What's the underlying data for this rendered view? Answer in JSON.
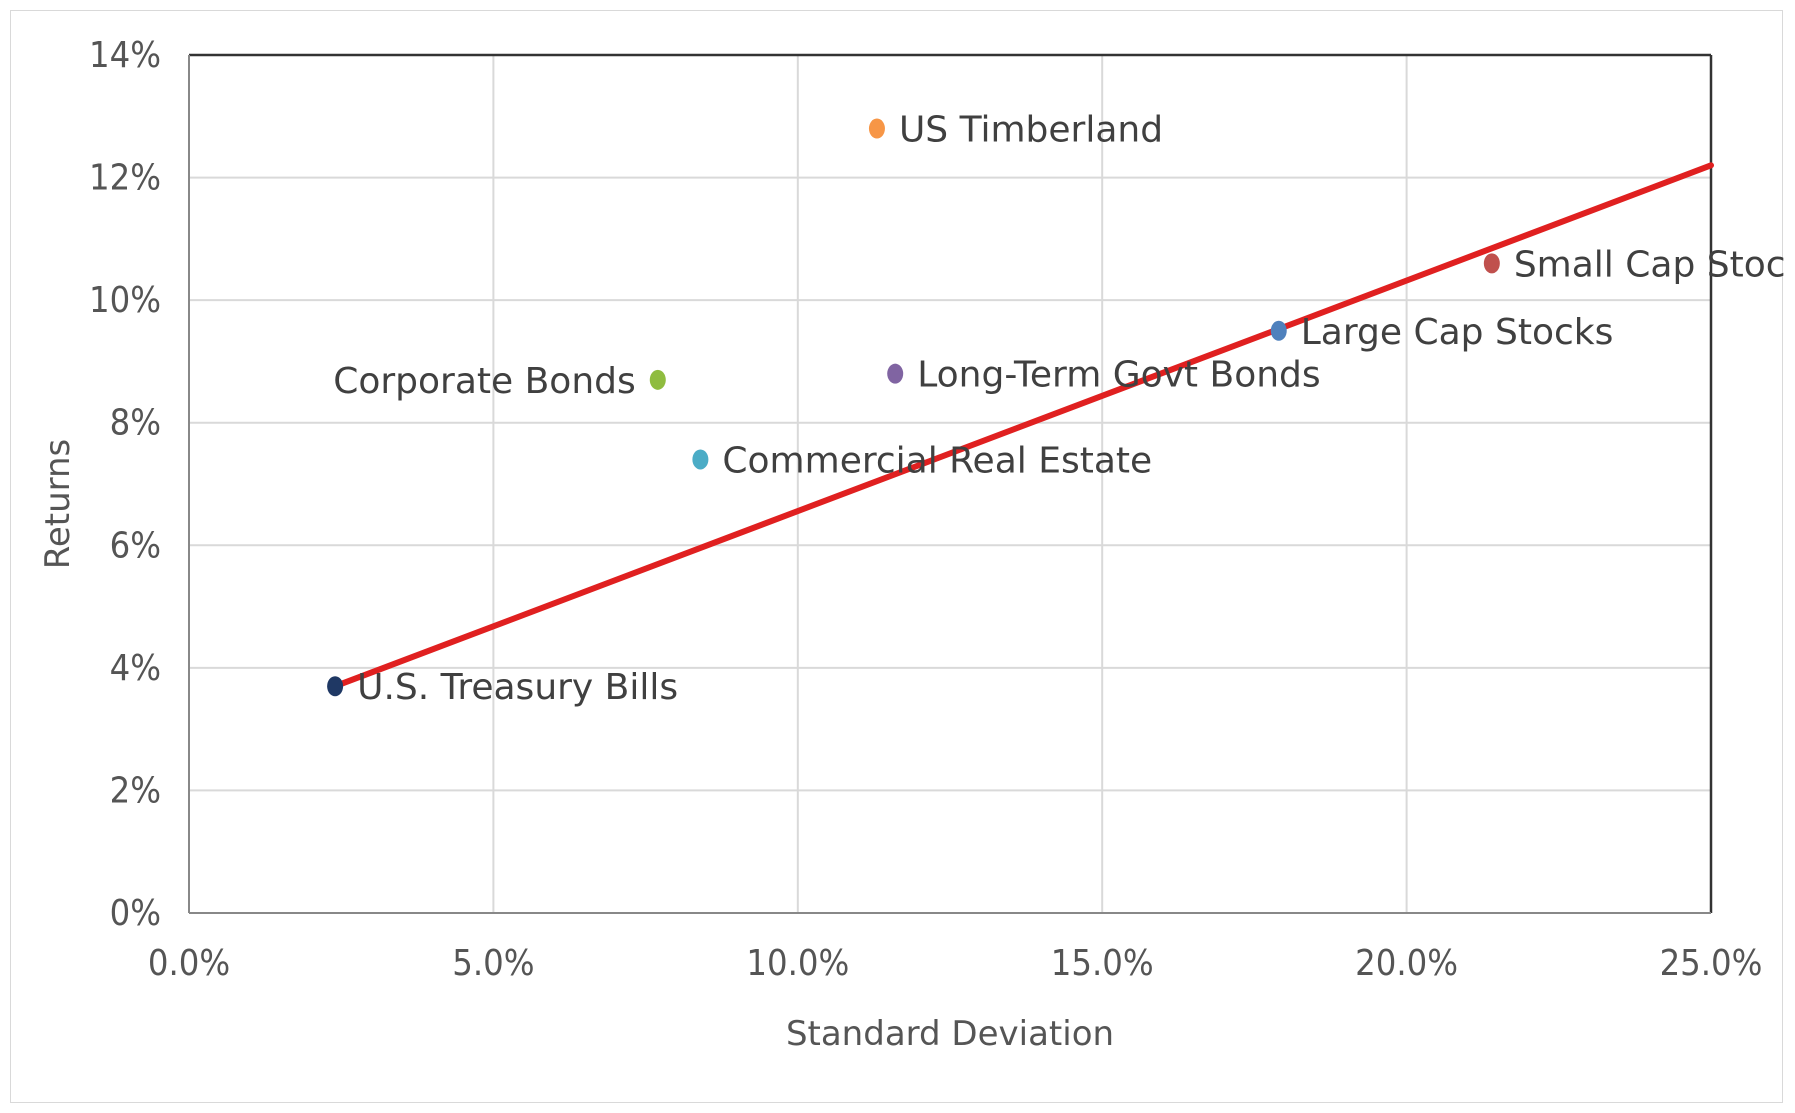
{
  "chart_data": {
    "type": "scatter",
    "title": "",
    "xlabel": "Standard Deviation",
    "ylabel": "Returns",
    "xlim": [
      0.0,
      25.0
    ],
    "ylim": [
      0,
      14
    ],
    "x_ticks": [
      "0.0%",
      "5.0%",
      "10.0%",
      "15.0%",
      "20.0%",
      "25.0%"
    ],
    "y_ticks": [
      "0%",
      "2%",
      "4%",
      "6%",
      "8%",
      "10%",
      "12%",
      "14%"
    ],
    "grid": true,
    "points": [
      {
        "label": "U.S. Treasury Bills",
        "x": 2.4,
        "y": 3.7,
        "color": "#1f3864",
        "label_side": "right"
      },
      {
        "label": "Corporate Bonds",
        "x": 7.7,
        "y": 8.7,
        "color": "#8fbc3f",
        "label_side": "left"
      },
      {
        "label": "Commercial Real Estate",
        "x": 8.4,
        "y": 7.4,
        "color": "#4bacc6",
        "label_side": "right"
      },
      {
        "label": "US Timberland",
        "x": 11.3,
        "y": 12.8,
        "color": "#f79646",
        "label_side": "right"
      },
      {
        "label": "Long-Term Govt Bonds",
        "x": 11.6,
        "y": 8.8,
        "color": "#8064a2",
        "label_side": "right"
      },
      {
        "label": "Large Cap Stocks",
        "x": 17.9,
        "y": 9.5,
        "color": "#4f81bd",
        "label_side": "right"
      },
      {
        "label": "Small Cap Stocks",
        "x": 21.4,
        "y": 10.6,
        "color": "#c0504d",
        "label_side": "right"
      }
    ],
    "trendline": {
      "x": [
        2.4,
        25.0
      ],
      "y": [
        3.7,
        12.2
      ],
      "color": "#e02020"
    }
  }
}
